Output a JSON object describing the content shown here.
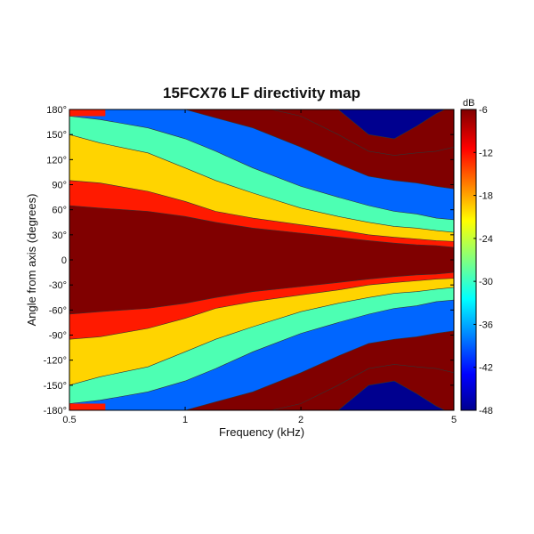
{
  "chart_data": {
    "type": "heatmap",
    "title": "15FCX76 LF directivity map",
    "xlabel": "Frequency (kHz)",
    "ylabel": "Angle from axis (degrees)",
    "x_scale": "log",
    "xlim": [
      0.5,
      5
    ],
    "ylim": [
      -180,
      180
    ],
    "x_ticks": [
      {
        "value": 0.5,
        "label": "0.5"
      },
      {
        "value": 1,
        "label": "1"
      },
      {
        "value": 2,
        "label": "2"
      },
      {
        "value": 5,
        "label": "5"
      }
    ],
    "y_ticks": [
      {
        "value": 180,
        "label": "180°"
      },
      {
        "value": 150,
        "label": "150°"
      },
      {
        "value": 120,
        "label": "120°"
      },
      {
        "value": 90,
        "label": "90°"
      },
      {
        "value": 60,
        "label": "60°"
      },
      {
        "value": 30,
        "label": "30°"
      },
      {
        "value": 0,
        "label": "0"
      },
      {
        "value": -30,
        "label": "-30°"
      },
      {
        "value": -60,
        "label": "-60°"
      },
      {
        "value": -90,
        "label": "-90°"
      },
      {
        "value": -120,
        "label": "-120°"
      },
      {
        "value": -150,
        "label": "-150°"
      },
      {
        "value": -180,
        "label": "-180°"
      }
    ],
    "colorbar": {
      "unit": "dB",
      "range": [
        -48,
        -6
      ],
      "ticks": [
        {
          "value": -6,
          "label": "-6"
        },
        {
          "value": -12,
          "label": "-12"
        },
        {
          "value": -18,
          "label": "-18"
        },
        {
          "value": -24,
          "label": "-24"
        },
        {
          "value": -30,
          "label": "-30"
        },
        {
          "value": -36,
          "label": "-36"
        },
        {
          "value": -42,
          "label": "-42"
        },
        {
          "value": -48,
          "label": "-48"
        }
      ],
      "colormap": "jet"
    },
    "contour_levels_db": [
      -6,
      -9,
      -12,
      -15,
      -18,
      -21,
      -24,
      -27,
      -30,
      -33,
      -36,
      -39,
      -42,
      -45,
      -48
    ],
    "level_colors": {
      "-6": "#800000",
      "-9": "#ff1a00",
      "-12": "#ff9900",
      "-15": "#ffd400",
      "-18": "#b8ff47",
      "-21": "#4dffb3",
      "-24": "#00d4ff",
      "-27": "#0066ff",
      "-30": "#0000b3"
    },
    "band_boundaries_deg": [
      {
        "level_db": -6,
        "freq_khz": [
          0.5,
          0.6,
          0.8,
          1.0,
          1.2,
          1.5,
          2.0,
          2.5,
          3.0,
          3.5,
          4.0,
          4.5,
          5.0
        ],
        "angle": [
          65,
          62,
          58,
          52,
          45,
          38,
          32,
          27,
          23,
          20,
          18,
          17,
          15
        ]
      },
      {
        "level_db": -9,
        "freq_khz": [
          0.5,
          0.6,
          0.8,
          1.0,
          1.2,
          1.5,
          2.0,
          2.5,
          3.0,
          3.5,
          4.0,
          4.5,
          5.0
        ],
        "angle": [
          95,
          92,
          82,
          70,
          58,
          50,
          42,
          36,
          30,
          27,
          25,
          23,
          22
        ]
      },
      {
        "level_db": -15,
        "freq_khz": [
          0.5,
          0.6,
          0.8,
          1.0,
          1.2,
          1.5,
          2.0,
          2.5,
          3.0,
          3.5,
          4.0,
          4.5,
          5.0
        ],
        "angle": [
          150,
          140,
          128,
          110,
          95,
          80,
          62,
          52,
          45,
          40,
          38,
          35,
          33
        ]
      },
      {
        "level_db": -21,
        "freq_khz": [
          0.5,
          0.6,
          0.8,
          1.0,
          1.2,
          1.5,
          2.0,
          2.5,
          3.0,
          3.5,
          4.0,
          4.5,
          5.0
        ],
        "angle": [
          172,
          168,
          158,
          145,
          130,
          110,
          88,
          75,
          65,
          58,
          55,
          50,
          48
        ]
      },
      {
        "level_db": -27,
        "freq_khz": [
          0.5,
          0.6,
          0.8,
          1.0,
          1.2,
          1.5,
          2.0,
          2.5,
          3.0,
          3.5,
          4.0,
          4.5,
          5.0
        ],
        "angle": [
          185,
          185,
          185,
          180,
          170,
          158,
          135,
          115,
          100,
          95,
          92,
          88,
          85
        ]
      },
      {
        "level_db": -33,
        "freq_khz": [
          0.5,
          0.6,
          0.8,
          1.0,
          1.2,
          1.5,
          2.0,
          2.5,
          3.0,
          3.5,
          4.0,
          4.5,
          5.0
        ],
        "angle": [
          190,
          190,
          190,
          190,
          190,
          185,
          172,
          150,
          130,
          125,
          128,
          130,
          135
        ]
      },
      {
        "level_db": -39,
        "freq_khz": [
          0.5,
          0.6,
          0.8,
          1.0,
          1.2,
          1.5,
          2.0,
          2.5,
          3.0,
          3.5,
          4.0,
          4.5,
          5.0
        ],
        "angle": [
          190,
          190,
          190,
          190,
          190,
          190,
          190,
          180,
          150,
          145,
          160,
          175,
          185
        ]
      }
    ],
    "back_lobe_limit_deg": 172
  },
  "colors": {
    "background": "#ffffff",
    "frame": "#000000"
  }
}
